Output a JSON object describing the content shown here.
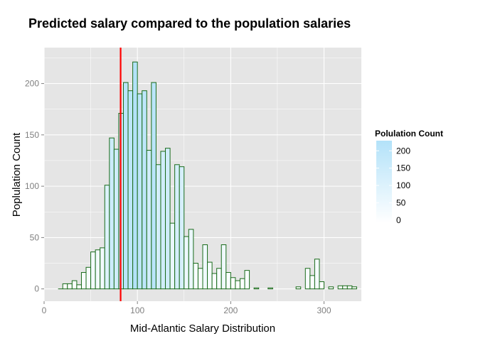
{
  "chart_data": {
    "type": "bar",
    "title": "Predicted salary compared to the population salaries",
    "xlabel": "Mid-Atlantic Salary Distribution",
    "ylabel": "Poplulation Count",
    "xlim": [
      0,
      340
    ],
    "ylim": [
      -12,
      235
    ],
    "xticks": [
      0,
      100,
      200,
      300
    ],
    "yticks": [
      0,
      50,
      100,
      150,
      200
    ],
    "bin_width": 5,
    "bins": [
      {
        "x": 20,
        "count": 5
      },
      {
        "x": 25,
        "count": 5
      },
      {
        "x": 30,
        "count": 8
      },
      {
        "x": 35,
        "count": 4
      },
      {
        "x": 40,
        "count": 16
      },
      {
        "x": 45,
        "count": 21
      },
      {
        "x": 50,
        "count": 36
      },
      {
        "x": 55,
        "count": 38
      },
      {
        "x": 60,
        "count": 40
      },
      {
        "x": 65,
        "count": 101
      },
      {
        "x": 70,
        "count": 147
      },
      {
        "x": 75,
        "count": 136
      },
      {
        "x": 80,
        "count": 171
      },
      {
        "x": 85,
        "count": 201
      },
      {
        "x": 90,
        "count": 193
      },
      {
        "x": 95,
        "count": 221
      },
      {
        "x": 100,
        "count": 190
      },
      {
        "x": 105,
        "count": 193
      },
      {
        "x": 110,
        "count": 135
      },
      {
        "x": 115,
        "count": 201
      },
      {
        "x": 120,
        "count": 121
      },
      {
        "x": 125,
        "count": 134
      },
      {
        "x": 130,
        "count": 137
      },
      {
        "x": 135,
        "count": 64
      },
      {
        "x": 140,
        "count": 121
      },
      {
        "x": 145,
        "count": 119
      },
      {
        "x": 150,
        "count": 51
      },
      {
        "x": 155,
        "count": 58
      },
      {
        "x": 160,
        "count": 25
      },
      {
        "x": 165,
        "count": 20
      },
      {
        "x": 170,
        "count": 43
      },
      {
        "x": 175,
        "count": 26
      },
      {
        "x": 180,
        "count": 15
      },
      {
        "x": 185,
        "count": 20
      },
      {
        "x": 190,
        "count": 43
      },
      {
        "x": 195,
        "count": 16
      },
      {
        "x": 200,
        "count": 11
      },
      {
        "x": 205,
        "count": 8
      },
      {
        "x": 210,
        "count": 10
      },
      {
        "x": 215,
        "count": 18
      },
      {
        "x": 220,
        "count": 0
      },
      {
        "x": 225,
        "count": 1
      },
      {
        "x": 230,
        "count": 0
      },
      {
        "x": 235,
        "count": 0
      },
      {
        "x": 240,
        "count": 1
      },
      {
        "x": 245,
        "count": 0
      },
      {
        "x": 250,
        "count": 0
      },
      {
        "x": 255,
        "count": 0
      },
      {
        "x": 260,
        "count": 0
      },
      {
        "x": 265,
        "count": 0
      },
      {
        "x": 270,
        "count": 2
      },
      {
        "x": 275,
        "count": 0
      },
      {
        "x": 280,
        "count": 20
      },
      {
        "x": 285,
        "count": 13
      },
      {
        "x": 290,
        "count": 29
      },
      {
        "x": 295,
        "count": 7
      },
      {
        "x": 300,
        "count": 0
      },
      {
        "x": 305,
        "count": 2
      },
      {
        "x": 310,
        "count": 0
      },
      {
        "x": 315,
        "count": 3
      },
      {
        "x": 320,
        "count": 3
      },
      {
        "x": 325,
        "count": 3
      },
      {
        "x": 330,
        "count": 2
      },
      {
        "x": 335,
        "count": 0
      }
    ],
    "bars_start_x": 15,
    "reference_line": {
      "x": 82,
      "color": "#ff0000"
    },
    "legend": {
      "title": "Polulation Count",
      "placement": "right",
      "labels": [
        "200",
        "150",
        "100",
        "50",
        "0"
      ],
      "range": [
        0,
        221
      ],
      "color_low": "#ffffff",
      "color_high": "#b3e2f9"
    },
    "colors": {
      "panel": "#e5e5e5",
      "grid": "#ffffff",
      "bar_outline": "#1a6b1a"
    },
    "grid": true
  }
}
